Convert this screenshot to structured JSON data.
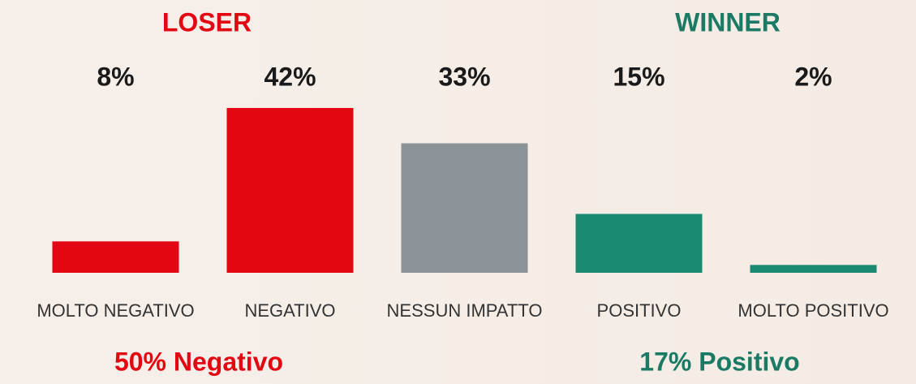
{
  "chart_data": {
    "type": "bar",
    "categories": [
      "MOLTO NEGATIVO",
      "NEGATIVO",
      "NESSUN IMPATTO",
      "POSITIVO",
      "MOLTO POSITIVO"
    ],
    "values": [
      8,
      42,
      33,
      15,
      2
    ],
    "value_labels": [
      "8%",
      "42%",
      "33%",
      "15%",
      "2%"
    ],
    "colors": [
      "#e30613",
      "#e30613",
      "#8b9398",
      "#1b8a73",
      "#1b8a73"
    ],
    "annotations": [
      {
        "text": "LOSER",
        "color": "#e30613"
      },
      {
        "text": "WINNER",
        "color": "#1b7a63"
      },
      {
        "text": "50% Negativo",
        "color": "#e30613"
      },
      {
        "text": "17% Positivo",
        "color": "#1b7a63"
      }
    ]
  }
}
